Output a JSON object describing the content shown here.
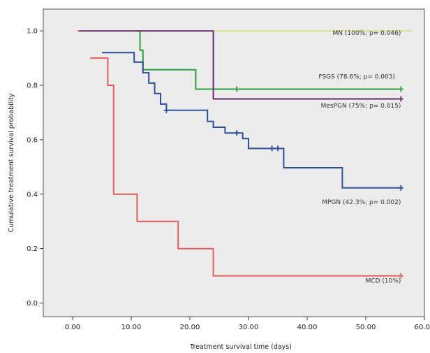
{
  "chart_data": {
    "type": "line",
    "subtype": "kaplan-meier-step",
    "title": "",
    "xlabel": "Treatment survival time (days)",
    "ylabel": "Cumulative treatment survival probability",
    "xlim": [
      -5,
      60
    ],
    "ylim": [
      -0.05,
      1.08
    ],
    "xticks": [
      0,
      10,
      20,
      30,
      40,
      50,
      60
    ],
    "xtick_labels": [
      "0.00",
      "10.00",
      "20.00",
      "30.00",
      "40.00",
      "50.00",
      "60.00"
    ],
    "yticks": [
      0.0,
      0.2,
      0.4,
      0.6,
      0.8,
      1.0
    ],
    "ytick_labels": [
      "0.0",
      "0.2",
      "0.4",
      "0.6",
      "0.8",
      "1.0"
    ],
    "grid": false,
    "plot_background": "#ececec",
    "series": [
      {
        "name": "MN (100%; p= 0.046)",
        "color": "#e4dc8c",
        "start": [
          0.5,
          1.0
        ],
        "steps": [],
        "end_x": 58,
        "censored": []
      },
      {
        "name": "FSGS (78.6%; p= 0.003)",
        "color": "#2e9e3e",
        "start": [
          11,
          1.0
        ],
        "steps": [
          [
            11.5,
            0.929
          ],
          [
            12,
            0.857
          ],
          [
            21,
            0.786
          ]
        ],
        "end_x": 56,
        "censored": [
          [
            28,
            0.786
          ],
          [
            56,
            0.786
          ]
        ]
      },
      {
        "name": "MesPGN (75%; p= 0.015)",
        "color": "#6a2a6a",
        "start": [
          1,
          1.0
        ],
        "steps": [
          [
            24,
            0.75
          ]
        ],
        "end_x": 56,
        "censored": [
          [
            56,
            0.75
          ]
        ]
      },
      {
        "name": "MPGN (42.3%; p= 0.002)",
        "color": "#2e4f9c",
        "start": [
          5,
          0.92
        ],
        "steps": [
          [
            10.5,
            0.885
          ],
          [
            12,
            0.846
          ],
          [
            13,
            0.808
          ],
          [
            14,
            0.77
          ],
          [
            15,
            0.731
          ],
          [
            16,
            0.708
          ],
          [
            23,
            0.667
          ],
          [
            24,
            0.646
          ],
          [
            26,
            0.625
          ],
          [
            29,
            0.604
          ],
          [
            30,
            0.568
          ],
          [
            36,
            0.497
          ],
          [
            46,
            0.423
          ]
        ],
        "end_x": 56,
        "censored": [
          [
            16,
            0.708
          ],
          [
            28,
            0.625
          ],
          [
            34,
            0.568
          ],
          [
            35,
            0.568
          ],
          [
            56,
            0.423
          ]
        ]
      },
      {
        "name": "MCD (10%)",
        "color": "#e06060",
        "start": [
          3,
          0.9
        ],
        "steps": [
          [
            6,
            0.8
          ],
          [
            7,
            0.4
          ],
          [
            11,
            0.3
          ],
          [
            18,
            0.2
          ],
          [
            24,
            0.1
          ]
        ],
        "end_x": 56,
        "censored": [
          [
            56,
            0.1
          ]
        ]
      }
    ],
    "labels": [
      {
        "text": "MN (100%; p= 0.046)",
        "x": 56,
        "y": 0.985,
        "anchor": "end"
      },
      {
        "text": "FSGS (78.6%; p= 0.003)",
        "x": 55,
        "y": 0.825,
        "anchor": "end"
      },
      {
        "text": "MesPGN (75%; p= 0.015)",
        "x": 56,
        "y": 0.718,
        "anchor": "end"
      },
      {
        "text": "MPGN (42.3%; p= 0.002)",
        "x": 56,
        "y": 0.363,
        "anchor": "end"
      },
      {
        "text": "MCD (10%)",
        "x": 56,
        "y": 0.075,
        "anchor": "end"
      }
    ]
  }
}
